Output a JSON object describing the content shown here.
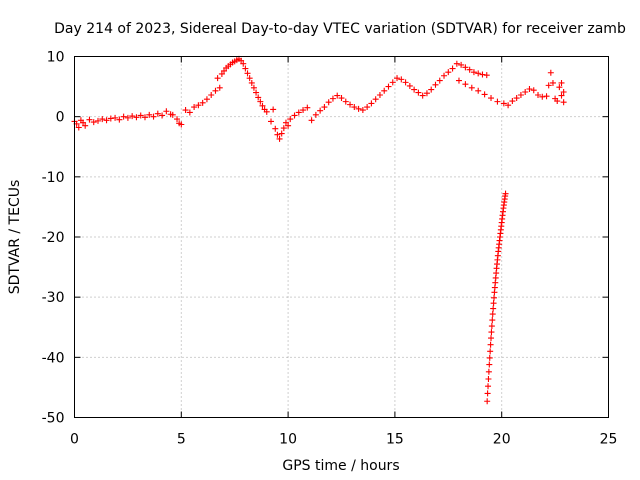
{
  "chart_data": {
    "type": "scatter",
    "title": "Day 214 of 2023, Sidereal Day-to-day VTEC variation (SDTVAR) for receiver zamb",
    "xlabel": "GPS time / hours",
    "ylabel": "SDTVAR / TECUs",
    "xlim": [
      0,
      25
    ],
    "ylim": [
      -50,
      10
    ],
    "xticks": [
      0,
      5,
      10,
      15,
      20,
      25
    ],
    "yticks": [
      10,
      0,
      -10,
      -20,
      -30,
      -40,
      -50
    ],
    "grid": true,
    "legend": "none",
    "marker": "+",
    "series": [
      {
        "name": "SDTVAR",
        "color": "#ff0000",
        "points": [
          [
            0.0,
            -0.8
          ],
          [
            0.1,
            -1.2
          ],
          [
            0.2,
            -1.8
          ],
          [
            0.3,
            -0.6
          ],
          [
            0.4,
            -1.0
          ],
          [
            0.5,
            -1.5
          ],
          [
            0.7,
            -0.5
          ],
          [
            0.9,
            -0.9
          ],
          [
            1.1,
            -0.7
          ],
          [
            1.3,
            -0.4
          ],
          [
            1.5,
            -0.6
          ],
          [
            1.7,
            -0.3
          ],
          [
            1.9,
            -0.2
          ],
          [
            2.1,
            -0.5
          ],
          [
            2.3,
            0.0
          ],
          [
            2.5,
            -0.2
          ],
          [
            2.7,
            0.1
          ],
          [
            2.9,
            -0.1
          ],
          [
            3.1,
            0.2
          ],
          [
            3.3,
            -0.1
          ],
          [
            3.5,
            0.3
          ],
          [
            3.7,
            0.0
          ],
          [
            3.9,
            0.5
          ],
          [
            4.1,
            0.2
          ],
          [
            4.3,
            0.9
          ],
          [
            4.5,
            0.4
          ],
          [
            4.6,
            0.3
          ],
          [
            4.8,
            -0.4
          ],
          [
            5.0,
            -1.3
          ],
          [
            4.9,
            -1.1
          ],
          [
            5.2,
            1.1
          ],
          [
            5.4,
            0.7
          ],
          [
            5.6,
            1.6
          ],
          [
            5.8,
            1.9
          ],
          [
            6.0,
            2.3
          ],
          [
            6.2,
            2.9
          ],
          [
            6.4,
            3.6
          ],
          [
            6.6,
            4.3
          ],
          [
            6.8,
            4.8
          ],
          [
            6.7,
            6.4
          ],
          [
            6.9,
            7.1
          ],
          [
            7.0,
            7.6
          ],
          [
            7.1,
            8.1
          ],
          [
            7.2,
            8.4
          ],
          [
            7.3,
            8.7
          ],
          [
            7.4,
            9.0
          ],
          [
            7.5,
            9.2
          ],
          [
            7.6,
            9.4
          ],
          [
            7.7,
            9.6
          ],
          [
            7.8,
            9.3
          ],
          [
            7.9,
            8.8
          ],
          [
            8.0,
            8.0
          ],
          [
            8.1,
            7.2
          ],
          [
            8.2,
            6.4
          ],
          [
            8.3,
            5.6
          ],
          [
            8.4,
            4.8
          ],
          [
            8.5,
            4.0
          ],
          [
            8.6,
            3.2
          ],
          [
            8.7,
            2.5
          ],
          [
            8.8,
            1.8
          ],
          [
            8.9,
            1.2
          ],
          [
            9.0,
            0.8
          ],
          [
            9.2,
            -0.8
          ],
          [
            9.3,
            1.2
          ],
          [
            9.4,
            -2.0
          ],
          [
            9.5,
            -3.0
          ],
          [
            9.6,
            -3.7
          ],
          [
            9.7,
            -2.8
          ],
          [
            9.8,
            -1.9
          ],
          [
            9.9,
            -1.0
          ],
          [
            10.0,
            -1.5
          ],
          [
            10.1,
            -0.4
          ],
          [
            10.3,
            0.2
          ],
          [
            10.5,
            0.7
          ],
          [
            10.7,
            1.1
          ],
          [
            10.9,
            1.5
          ],
          [
            11.1,
            -0.6
          ],
          [
            11.3,
            0.3
          ],
          [
            11.5,
            1.0
          ],
          [
            11.7,
            1.6
          ],
          [
            11.9,
            2.4
          ],
          [
            12.1,
            3.0
          ],
          [
            12.3,
            3.5
          ],
          [
            12.5,
            3.1
          ],
          [
            12.7,
            2.5
          ],
          [
            12.9,
            2.0
          ],
          [
            13.1,
            1.6
          ],
          [
            13.3,
            1.3
          ],
          [
            13.5,
            1.1
          ],
          [
            13.7,
            1.6
          ],
          [
            13.9,
            2.2
          ],
          [
            14.1,
            2.9
          ],
          [
            14.3,
            3.6
          ],
          [
            14.5,
            4.3
          ],
          [
            14.7,
            5.0
          ],
          [
            14.9,
            5.7
          ],
          [
            15.1,
            6.4
          ],
          [
            15.3,
            6.2
          ],
          [
            15.5,
            5.7
          ],
          [
            15.7,
            5.1
          ],
          [
            15.9,
            4.5
          ],
          [
            16.1,
            4.0
          ],
          [
            16.3,
            3.5
          ],
          [
            16.5,
            3.9
          ],
          [
            16.7,
            4.5
          ],
          [
            16.9,
            5.3
          ],
          [
            17.1,
            6.0
          ],
          [
            17.3,
            6.8
          ],
          [
            17.5,
            7.4
          ],
          [
            17.7,
            8.0
          ],
          [
            17.9,
            8.8
          ],
          [
            18.1,
            8.6
          ],
          [
            18.3,
            8.2
          ],
          [
            18.5,
            7.8
          ],
          [
            18.7,
            7.4
          ],
          [
            18.9,
            7.2
          ],
          [
            19.1,
            7.0
          ],
          [
            19.3,
            6.9
          ],
          [
            18.0,
            6.0
          ],
          [
            18.3,
            5.4
          ],
          [
            18.6,
            4.8
          ],
          [
            18.9,
            4.3
          ],
          [
            19.2,
            3.7
          ],
          [
            19.5,
            3.1
          ],
          [
            19.8,
            2.5
          ],
          [
            20.1,
            2.2
          ],
          [
            20.3,
            1.9
          ],
          [
            20.5,
            2.6
          ],
          [
            20.7,
            3.1
          ],
          [
            20.9,
            3.6
          ],
          [
            21.1,
            4.1
          ],
          [
            21.3,
            4.6
          ],
          [
            21.5,
            4.4
          ],
          [
            21.7,
            3.6
          ],
          [
            21.9,
            3.3
          ],
          [
            22.1,
            3.4
          ],
          [
            22.2,
            5.2
          ],
          [
            22.3,
            7.3
          ],
          [
            22.4,
            5.6
          ],
          [
            22.5,
            3.0
          ],
          [
            22.6,
            2.6
          ],
          [
            22.7,
            4.9
          ],
          [
            22.8,
            3.5
          ],
          [
            22.9,
            2.4
          ],
          [
            22.8,
            5.6
          ],
          [
            22.9,
            4.1
          ],
          [
            19.32,
            -47.3
          ],
          [
            19.34,
            -46.0
          ],
          [
            19.36,
            -44.8
          ],
          [
            19.38,
            -43.6
          ],
          [
            19.4,
            -42.4
          ],
          [
            19.42,
            -41.2
          ],
          [
            19.44,
            -40.1
          ],
          [
            19.46,
            -39.0
          ],
          [
            19.48,
            -37.9
          ],
          [
            19.5,
            -36.8
          ],
          [
            19.52,
            -35.8
          ],
          [
            19.54,
            -34.8
          ],
          [
            19.56,
            -33.8
          ],
          [
            19.58,
            -32.8
          ],
          [
            19.6,
            -31.9
          ],
          [
            19.62,
            -31.0
          ],
          [
            19.64,
            -30.1
          ],
          [
            19.66,
            -29.2
          ],
          [
            19.68,
            -28.4
          ],
          [
            19.7,
            -27.6
          ],
          [
            19.72,
            -26.8
          ],
          [
            19.74,
            -26.0
          ],
          [
            19.76,
            -25.2
          ],
          [
            19.78,
            -24.5
          ],
          [
            19.8,
            -23.8
          ],
          [
            19.82,
            -23.1
          ],
          [
            19.84,
            -22.4
          ],
          [
            19.86,
            -21.8
          ],
          [
            19.88,
            -21.2
          ],
          [
            19.9,
            -20.6
          ],
          [
            19.92,
            -20.0
          ],
          [
            19.94,
            -19.4
          ],
          [
            19.96,
            -18.8
          ],
          [
            19.98,
            -18.2
          ],
          [
            20.0,
            -17.6
          ],
          [
            20.02,
            -17.0
          ],
          [
            20.04,
            -16.4
          ],
          [
            20.06,
            -15.8
          ],
          [
            20.08,
            -15.2
          ],
          [
            20.1,
            -14.7
          ],
          [
            20.12,
            -14.2
          ],
          [
            20.14,
            -13.7
          ],
          [
            20.16,
            -13.2
          ],
          [
            20.18,
            -12.8
          ]
        ]
      }
    ]
  }
}
